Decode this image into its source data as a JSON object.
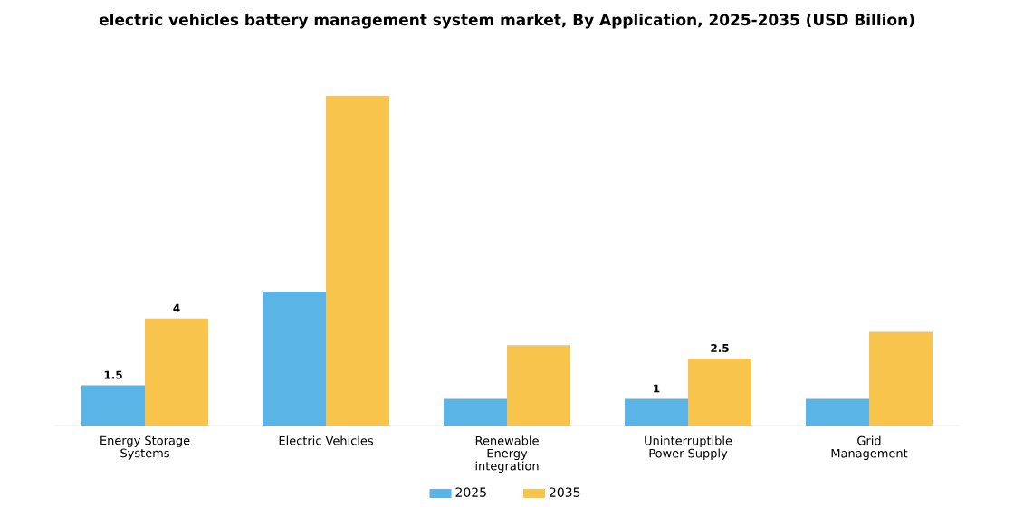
{
  "chart_data": {
    "type": "bar",
    "title": "electric vehicles battery management system market, By Application, 2025-2035 (USD Billion)",
    "categories": [
      "Energy Storage Systems",
      "Electric Vehicles",
      "Renewable Energy integration",
      "Uninterruptible Power Supply",
      "Grid Management"
    ],
    "series": [
      {
        "name": "2025",
        "color": "#5ab4e5",
        "values": [
          1.5,
          5.0,
          1.0,
          1.0,
          1.0
        ],
        "value_labels": [
          "1.5",
          null,
          null,
          "1",
          null
        ]
      },
      {
        "name": "2035",
        "color": "#f9c44c",
        "values": [
          4,
          12.3,
          3.0,
          2.5,
          3.5
        ],
        "value_labels": [
          "4",
          null,
          null,
          "2.5",
          null
        ]
      }
    ],
    "legend": "bottom"
  }
}
